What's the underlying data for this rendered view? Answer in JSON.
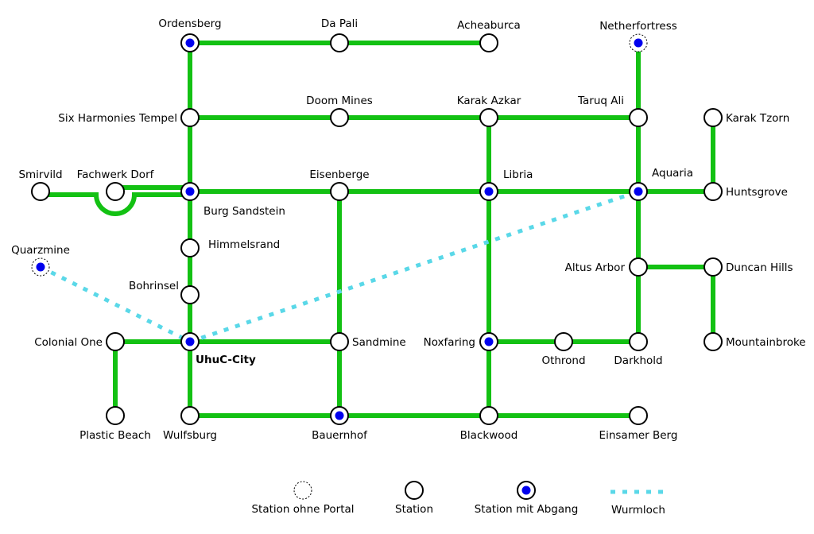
{
  "colors": {
    "line": "#13c113",
    "wormhole": "#5ad8e8",
    "exit_dot": "#0000ee",
    "station_fill": "#ffffff"
  },
  "stations": {
    "ordensberg": {
      "label": "Ordensberg",
      "type": "exit"
    },
    "da_pali": {
      "label": "Da Pali",
      "type": "station"
    },
    "acheaburca": {
      "label": "Acheaburca",
      "type": "station"
    },
    "netherfortress": {
      "label": "Netherfortress",
      "type": "exit_no_portal"
    },
    "six_harmonies": {
      "label": "Six Harmonies Tempel",
      "type": "station"
    },
    "doom_mines": {
      "label": "Doom Mines",
      "type": "station"
    },
    "karak_azkar": {
      "label": "Karak Azkar",
      "type": "station"
    },
    "taruq_ali": {
      "label": "Taruq Ali",
      "type": "station"
    },
    "karak_tzorn": {
      "label": "Karak Tzorn",
      "type": "station"
    },
    "smirvild": {
      "label": "Smirvild",
      "type": "station"
    },
    "fachwerk_dorf": {
      "label": "Fachwerk Dorf",
      "type": "station"
    },
    "burg_sandstein": {
      "label": "Burg Sandstein",
      "type": "exit"
    },
    "eisenberge": {
      "label": "Eisenberge",
      "type": "station"
    },
    "libria": {
      "label": "Libria",
      "type": "exit"
    },
    "aquaria": {
      "label": "Aquaria",
      "type": "exit"
    },
    "huntsgrove": {
      "label": "Huntsgrove",
      "type": "station"
    },
    "quarzmine": {
      "label": "Quarzmine",
      "type": "exit_no_portal"
    },
    "himmelsrand": {
      "label": "Himmelsrand",
      "type": "station"
    },
    "altus_arbor": {
      "label": "Altus Arbor",
      "type": "station"
    },
    "duncan_hills": {
      "label": "Duncan Hills",
      "type": "station"
    },
    "bohrinsel": {
      "label": "Bohrinsel",
      "type": "station"
    },
    "colonial_one": {
      "label": "Colonial One",
      "type": "station"
    },
    "uhuc_city": {
      "label": "UhuC-City",
      "type": "exit"
    },
    "sandmine": {
      "label": "Sandmine",
      "type": "station"
    },
    "noxfaring": {
      "label": "Noxfaring",
      "type": "exit"
    },
    "othrond": {
      "label": "Othrond",
      "type": "station"
    },
    "darkhold": {
      "label": "Darkhold",
      "type": "station"
    },
    "mountainbroke": {
      "label": "Mountainbroke",
      "type": "station"
    },
    "plastic_beach": {
      "label": "Plastic Beach",
      "type": "station"
    },
    "wulfsburg": {
      "label": "Wulfsburg",
      "type": "station"
    },
    "bauernhof": {
      "label": "Bauernhof",
      "type": "exit"
    },
    "blackwood": {
      "label": "Blackwood",
      "type": "station"
    },
    "einsamer_berg": {
      "label": "Einsamer Berg",
      "type": "station"
    }
  },
  "legend": {
    "no_portal": "Station ohne Portal",
    "station": "Station",
    "exit": "Station mit Abgang",
    "wormhole": "Wurmloch"
  }
}
